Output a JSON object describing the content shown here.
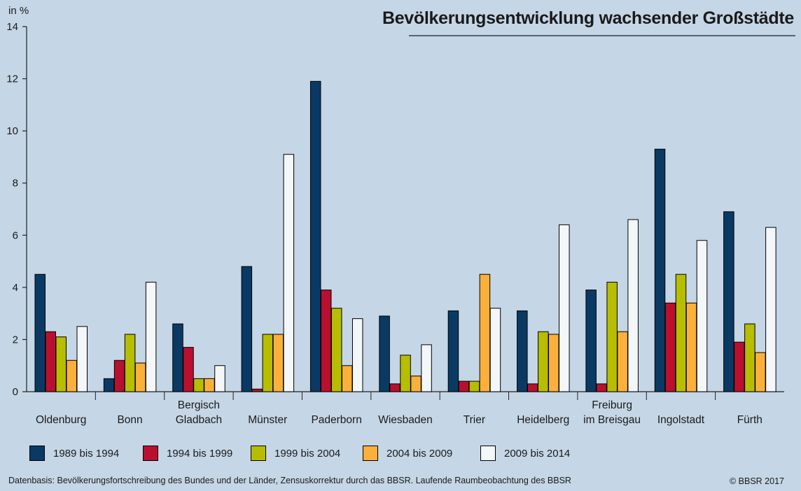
{
  "header": {
    "title": "Bevölkerungsentwicklung wachsender Großstädte",
    "unit_label": "in %"
  },
  "footer": {
    "source": "Datenbasis: Bevölkerungsfortschreibung des Bundes und der Länder, Zensuskorrektur durch das BBSR. Laufende Raumbeobachtung des BBSR",
    "copyright": "© BBSR 2017"
  },
  "colors": {
    "background": "#c5d6e6",
    "series": [
      "#0a3a64",
      "#b8102e",
      "#b7bd00",
      "#fbb03b",
      "#f4f7f9"
    ]
  },
  "chart_data": {
    "type": "bar",
    "title": "Bevölkerungsentwicklung wachsender Großstädte",
    "ylabel": "in %",
    "ylim": [
      0,
      14
    ],
    "yticks": [
      0,
      2,
      4,
      6,
      8,
      10,
      12,
      14
    ],
    "grid": false,
    "legend_position": "bottom",
    "categories": [
      [
        "Oldenburg"
      ],
      [
        "Bonn"
      ],
      [
        "Bergisch",
        "Gladbach"
      ],
      [
        "Münster"
      ],
      [
        "Paderborn"
      ],
      [
        "Wiesbaden"
      ],
      [
        "Trier"
      ],
      [
        "Heidelberg"
      ],
      [
        "Freiburg",
        "im Breisgau"
      ],
      [
        "Ingolstadt"
      ],
      [
        "Fürth"
      ]
    ],
    "series": [
      {
        "name": "1989 bis 1994",
        "values": [
          4.5,
          0.5,
          2.6,
          4.8,
          11.9,
          2.9,
          3.1,
          3.1,
          3.9,
          9.3,
          6.9
        ]
      },
      {
        "name": "1994 bis 1999",
        "values": [
          2.3,
          1.2,
          1.7,
          0.1,
          3.9,
          0.3,
          0.4,
          0.3,
          0.3,
          3.4,
          1.9
        ]
      },
      {
        "name": "1999 bis 2004",
        "values": [
          2.1,
          2.2,
          0.5,
          2.2,
          3.2,
          1.4,
          0.4,
          2.3,
          4.2,
          4.5,
          2.6
        ]
      },
      {
        "name": "2004 bis 2009",
        "values": [
          1.2,
          1.1,
          0.5,
          2.2,
          1.0,
          0.6,
          4.5,
          2.2,
          2.3,
          3.4,
          1.5
        ]
      },
      {
        "name": "2009 bis 2014",
        "values": [
          2.5,
          4.2,
          1.0,
          9.1,
          2.8,
          1.8,
          3.2,
          6.4,
          6.6,
          5.8,
          6.3
        ]
      }
    ]
  }
}
